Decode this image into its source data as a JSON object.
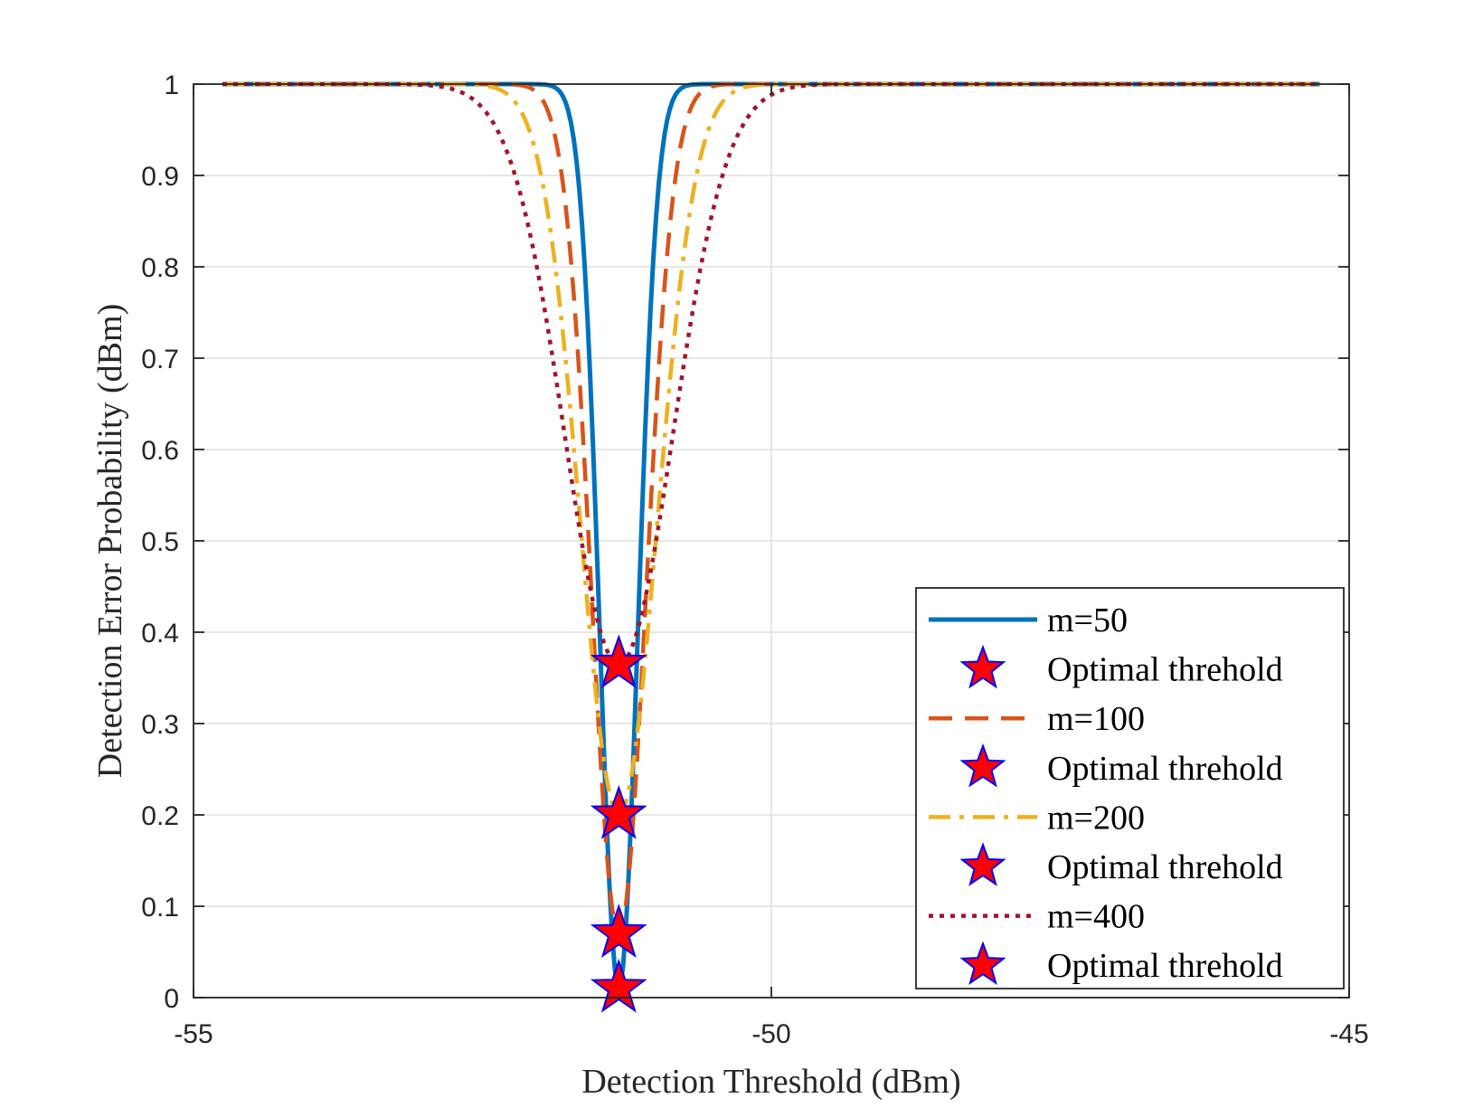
{
  "chart_data": {
    "type": "line",
    "title": "",
    "xlabel": "Detection Threshold (dBm)",
    "ylabel": "Detection Error Probability (dBm)",
    "xlim": [
      -55,
      -45
    ],
    "ylim": [
      0,
      1
    ],
    "xticks": [
      -55,
      -50,
      -45
    ],
    "xtick_labels": [
      "-55",
      "-50",
      "-45"
    ],
    "yticks": [
      0,
      0.1,
      0.2,
      0.3,
      0.4,
      0.5,
      0.6,
      0.7,
      0.8,
      0.9,
      1
    ],
    "ytick_labels": [
      "0",
      "0.1",
      "0.2",
      "0.3",
      "0.4",
      "0.5",
      "0.6",
      "0.7",
      "0.8",
      "0.9",
      "1"
    ],
    "grid": true,
    "legend_position": "bottom-right",
    "series": [
      {
        "name": "m=50",
        "color": "#0072BD",
        "style": "solid",
        "x_range": [
          -54.75,
          -45.25
        ],
        "center": -51.32,
        "min_value": 0.01,
        "width": 0.233
      },
      {
        "name": "m=100",
        "color": "#D95319",
        "style": "dashed",
        "x_range": [
          -54.75,
          -45.25
        ],
        "center": -51.32,
        "min_value": 0.07,
        "width": 0.33
      },
      {
        "name": "m=200",
        "color": "#EDB120",
        "style": "dashdot",
        "x_range": [
          -54.75,
          -45.25
        ],
        "center": -51.32,
        "min_value": 0.2,
        "width": 0.466
      },
      {
        "name": "m=400",
        "color": "#A2142F",
        "style": "dotted",
        "x_range": [
          -54.75,
          -45.25
        ],
        "center": -51.32,
        "min_value": 0.365,
        "width": 0.66
      }
    ],
    "optimal_points": [
      {
        "label": "Optimal threhold",
        "x": -51.32,
        "y": 0.01
      },
      {
        "label": "Optimal threhold",
        "x": -51.32,
        "y": 0.07
      },
      {
        "label": "Optimal threhold",
        "x": -51.32,
        "y": 0.2
      },
      {
        "label": "Optimal threhold",
        "x": -51.32,
        "y": 0.365
      }
    ],
    "marker_fill": "#FF0000",
    "marker_edge": "#0000FF",
    "legend_entries": [
      {
        "label": "m=50",
        "kind": "line",
        "series": 0
      },
      {
        "label": "Optimal threhold",
        "kind": "marker"
      },
      {
        "label": "m=100",
        "kind": "line",
        "series": 1
      },
      {
        "label": "Optimal threhold",
        "kind": "marker"
      },
      {
        "label": "m=200",
        "kind": "line",
        "series": 2
      },
      {
        "label": "Optimal threhold",
        "kind": "marker"
      },
      {
        "label": "m=400",
        "kind": "line",
        "series": 3
      },
      {
        "label": "Optimal threhold",
        "kind": "marker"
      }
    ]
  }
}
